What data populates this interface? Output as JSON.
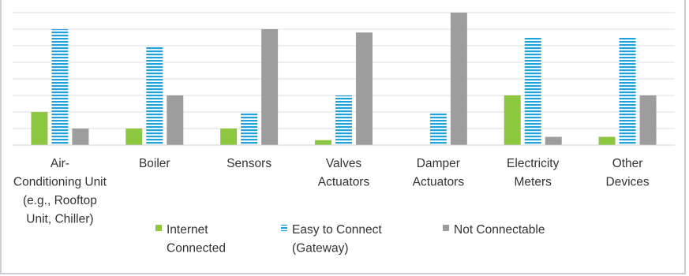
{
  "chart_data": {
    "type": "bar",
    "categories": [
      [
        "Air-",
        "Conditioning Unit",
        "(e.g., Rooftop",
        "Unit, Chiller)"
      ],
      [
        "Boiler"
      ],
      [
        "Sensors"
      ],
      [
        "Valves",
        "Actuators"
      ],
      [
        "Damper",
        "Actuators"
      ],
      [
        "Electricity",
        "Meters"
      ],
      [
        "Other",
        "Devices"
      ]
    ],
    "series": [
      {
        "name": [
          "Internet",
          "Connected"
        ],
        "values": [
          2,
          1,
          1,
          0.3,
          0,
          3,
          0.5
        ],
        "color": "#8dc63f",
        "pattern": "solid"
      },
      {
        "name": [
          "Easy to Connect",
          "(Gateway)"
        ],
        "values": [
          7,
          6,
          2,
          3,
          2,
          6.5,
          6.5
        ],
        "color": "#1ea3df",
        "pattern": "horizontal-stripes"
      },
      {
        "name": [
          "Not Connectable"
        ],
        "values": [
          1,
          3,
          7,
          6.8,
          8,
          0.5,
          3
        ],
        "color": "#9d9d9d",
        "pattern": "solid"
      }
    ],
    "ylim": [
      0,
      8
    ],
    "grid": true,
    "legend": "bottom",
    "xlabel": "",
    "ylabel": "",
    "title": ""
  }
}
